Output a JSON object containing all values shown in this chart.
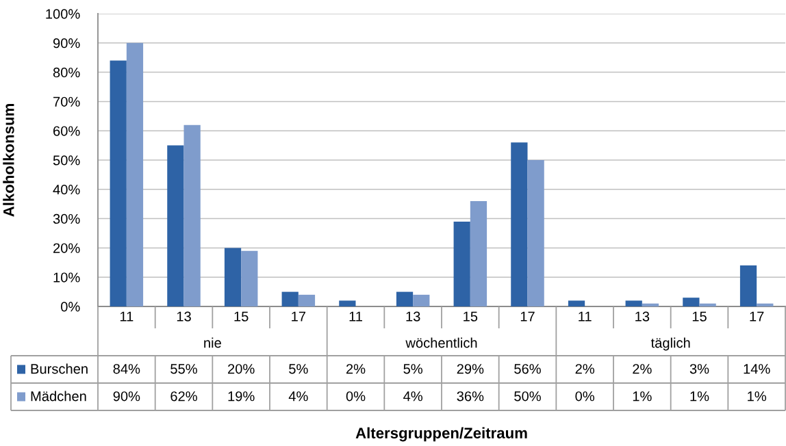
{
  "chart_data": {
    "type": "bar",
    "ylabel": "Alkoholkonsum",
    "categories": [
      "11",
      "13",
      "15",
      "17",
      "11",
      "13",
      "15",
      "17",
      "11",
      "13",
      "15",
      "17"
    ],
    "annotations": [
      "nie",
      "wöchentlich",
      "täglich",
      "Altersgruppen/Zeitraum"
    ],
    "series": [
      {
        "name": "Burschen",
        "color": "#2e63a6",
        "values": [
          84,
          55,
          20,
          5,
          2,
          5,
          29,
          56,
          2,
          2,
          3,
          14
        ],
        "value_labels": [
          "84%",
          "55%",
          "20%",
          "5%",
          "2%",
          "5%",
          "29%",
          "56%",
          "2%",
          "2%",
          "3%",
          "14%"
        ]
      },
      {
        "name": "Mädchen",
        "color": "#7f9ccc",
        "values": [
          90,
          62,
          19,
          4,
          0,
          4,
          36,
          50,
          0,
          1,
          1,
          1
        ],
        "value_labels": [
          "90%",
          "62%",
          "19%",
          "4%",
          "0%",
          "4%",
          "36%",
          "50%",
          "0%",
          "1%",
          "1%",
          "1%"
        ]
      }
    ],
    "ylim": [
      0,
      100
    ],
    "yticks": [
      {
        "value": 0,
        "label": "0%"
      },
      {
        "value": 10,
        "label": "10%"
      },
      {
        "value": 20,
        "label": "20%"
      },
      {
        "value": 30,
        "label": "30%"
      },
      {
        "value": 40,
        "label": "40%"
      },
      {
        "value": 50,
        "label": "50%"
      },
      {
        "value": 60,
        "label": "60%"
      },
      {
        "value": 70,
        "label": "70%"
      },
      {
        "value": 80,
        "label": "80%"
      },
      {
        "value": 90,
        "label": "90%"
      },
      {
        "value": 100,
        "label": "100%"
      }
    ],
    "grid": "y",
    "legend": "bottom left"
  }
}
